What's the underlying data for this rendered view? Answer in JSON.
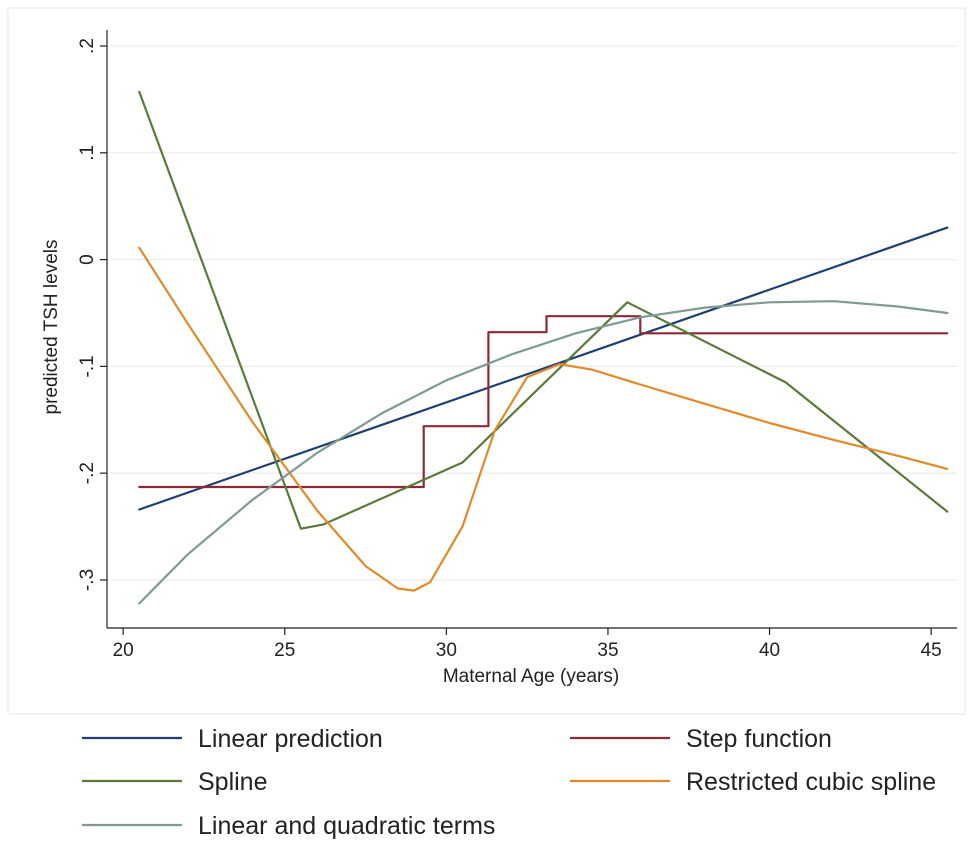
{
  "chart_data": {
    "type": "line",
    "xlabel": "Maternal Age (years)",
    "ylabel": "predicted TSH levels",
    "xlim": [
      19.5,
      45.8
    ],
    "ylim": [
      -0.345,
      0.215
    ],
    "x_ticks": [
      20,
      25,
      30,
      35,
      40,
      45
    ],
    "x_tick_labels": [
      "20",
      "25",
      "30",
      "35",
      "40",
      "45"
    ],
    "y_ticks": [
      -0.3,
      -0.2,
      -0.1,
      0,
      0.1,
      0.2
    ],
    "y_tick_labels": [
      "-.3",
      "-.2",
      "-.1",
      "0",
      ".1",
      ".2"
    ],
    "grid": "horizontal",
    "legend_position": "bottom",
    "series": [
      {
        "name": "Linear prediction",
        "color": "#1f3f73",
        "points": [
          [
            20.5,
            -0.234
          ],
          [
            45.5,
            0.03
          ]
        ]
      },
      {
        "name": "Step function",
        "color": "#8b2a35",
        "points": [
          [
            20.5,
            -0.213
          ],
          [
            29.3,
            -0.213
          ],
          [
            29.3,
            -0.156
          ],
          [
            31.3,
            -0.156
          ],
          [
            31.3,
            -0.068
          ],
          [
            33.1,
            -0.068
          ],
          [
            33.1,
            -0.053
          ],
          [
            36.0,
            -0.053
          ],
          [
            36.0,
            -0.069
          ],
          [
            45.5,
            -0.069
          ]
        ]
      },
      {
        "name": "Spline",
        "color": "#5b7a3a",
        "points": [
          [
            20.5,
            0.157
          ],
          [
            25.5,
            -0.252
          ],
          [
            26.2,
            -0.248
          ],
          [
            30.5,
            -0.19
          ],
          [
            35.6,
            -0.04
          ],
          [
            40.5,
            -0.115
          ],
          [
            45.5,
            -0.236
          ]
        ]
      },
      {
        "name": "Restricted cubic spline",
        "color": "#e08a2a",
        "points": [
          [
            20.5,
            0.011
          ],
          [
            22.0,
            -0.06
          ],
          [
            24.0,
            -0.152
          ],
          [
            26.0,
            -0.235
          ],
          [
            27.5,
            -0.287
          ],
          [
            28.5,
            -0.308
          ],
          [
            29.0,
            -0.31
          ],
          [
            29.5,
            -0.302
          ],
          [
            30.5,
            -0.25
          ],
          [
            31.5,
            -0.16
          ],
          [
            32.5,
            -0.11
          ],
          [
            33.5,
            -0.098
          ],
          [
            34.5,
            -0.103
          ],
          [
            36.0,
            -0.117
          ],
          [
            38.0,
            -0.135
          ],
          [
            40.0,
            -0.153
          ],
          [
            42.0,
            -0.169
          ],
          [
            44.0,
            -0.184
          ],
          [
            45.5,
            -0.196
          ]
        ]
      },
      {
        "name": "Linear and quadratic terms",
        "color": "#7f9a93",
        "points": [
          [
            20.5,
            -0.322
          ],
          [
            22.0,
            -0.276
          ],
          [
            24.0,
            -0.225
          ],
          [
            26.0,
            -0.181
          ],
          [
            28.0,
            -0.144
          ],
          [
            30.0,
            -0.113
          ],
          [
            32.0,
            -0.089
          ],
          [
            34.0,
            -0.069
          ],
          [
            36.0,
            -0.054
          ],
          [
            38.0,
            -0.045
          ],
          [
            40.0,
            -0.04
          ],
          [
            42.0,
            -0.039
          ],
          [
            44.0,
            -0.044
          ],
          [
            45.5,
            -0.05
          ]
        ]
      }
    ]
  }
}
